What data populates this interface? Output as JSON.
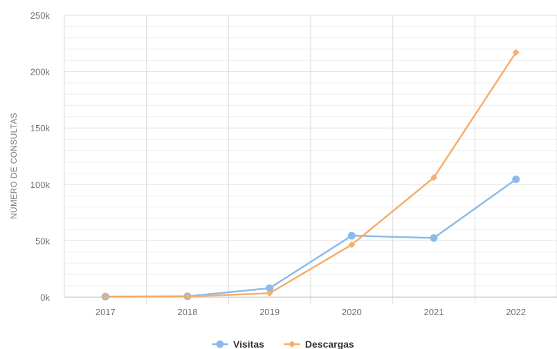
{
  "chart_data": {
    "type": "line",
    "x": [
      "2017",
      "2018",
      "2019",
      "2020",
      "2021",
      "2022"
    ],
    "ylabel": "NÚMERO DE CONSULTAS",
    "ylim": [
      0,
      250000
    ],
    "yticks": [
      0,
      50000,
      100000,
      150000,
      200000,
      250000
    ],
    "ytick_labels": [
      "0k",
      "50k",
      "100k",
      "150k",
      "200k",
      "250k"
    ],
    "minor_grid_step": 10000,
    "grid": true,
    "legend_position": "bottom-center",
    "series": [
      {
        "name": "Visitas",
        "color": "#8cbbe9",
        "marker": "circle",
        "values": [
          500,
          800,
          8000,
          54500,
          52500,
          104500
        ]
      },
      {
        "name": "Descargas",
        "color": "#f5ae6b",
        "marker": "diamond",
        "values": [
          400,
          600,
          3500,
          46500,
          106000,
          217000
        ]
      }
    ]
  }
}
